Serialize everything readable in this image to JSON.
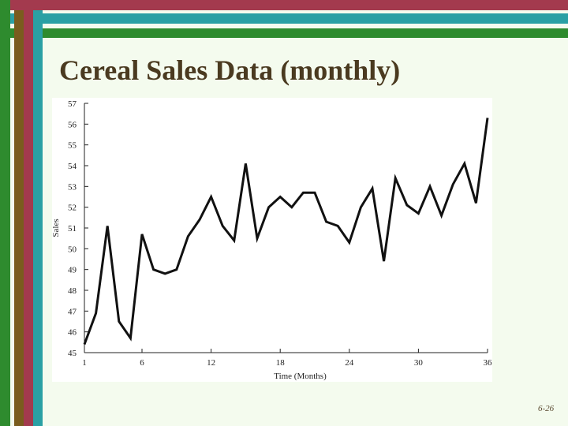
{
  "slide": {
    "title": "Cereal Sales Data (monthly)",
    "page_number": "6-26"
  },
  "theme": {
    "background": "#f4fbee",
    "stripe_red": "#a33a4e",
    "stripe_teal": "#2aa0a4",
    "stripe_green": "#2e8b2e",
    "stripe_olive": "#7a5c1e",
    "title_color": "#4a3a20"
  },
  "chart_data": {
    "type": "line",
    "title": "",
    "xlabel": "Time (Months)",
    "ylabel": "Sales",
    "xlim": [
      1,
      36
    ],
    "ylim": [
      45,
      57
    ],
    "x_ticks": [
      1,
      6,
      12,
      18,
      24,
      30,
      36
    ],
    "y_ticks": [
      45,
      46,
      47,
      48,
      49,
      50,
      51,
      52,
      53,
      54,
      55,
      56,
      57
    ],
    "grid": false,
    "x": [
      1,
      2,
      3,
      4,
      5,
      6,
      7,
      8,
      9,
      10,
      11,
      12,
      13,
      14,
      15,
      16,
      17,
      18,
      19,
      20,
      21,
      22,
      23,
      24,
      25,
      26,
      27,
      28,
      29,
      30,
      31,
      32,
      33,
      34,
      35,
      36
    ],
    "y": [
      45.4,
      46.9,
      51.1,
      46.5,
      45.7,
      50.7,
      49.0,
      48.8,
      49.0,
      50.6,
      51.4,
      52.5,
      51.1,
      50.4,
      54.1,
      50.5,
      52.0,
      52.5,
      52.0,
      52.7,
      52.7,
      51.3,
      51.1,
      50.3,
      52.0,
      52.9,
      49.4,
      53.4,
      52.1,
      51.7,
      53.0,
      51.6,
      53.1,
      54.1,
      52.2,
      56.3
    ]
  }
}
